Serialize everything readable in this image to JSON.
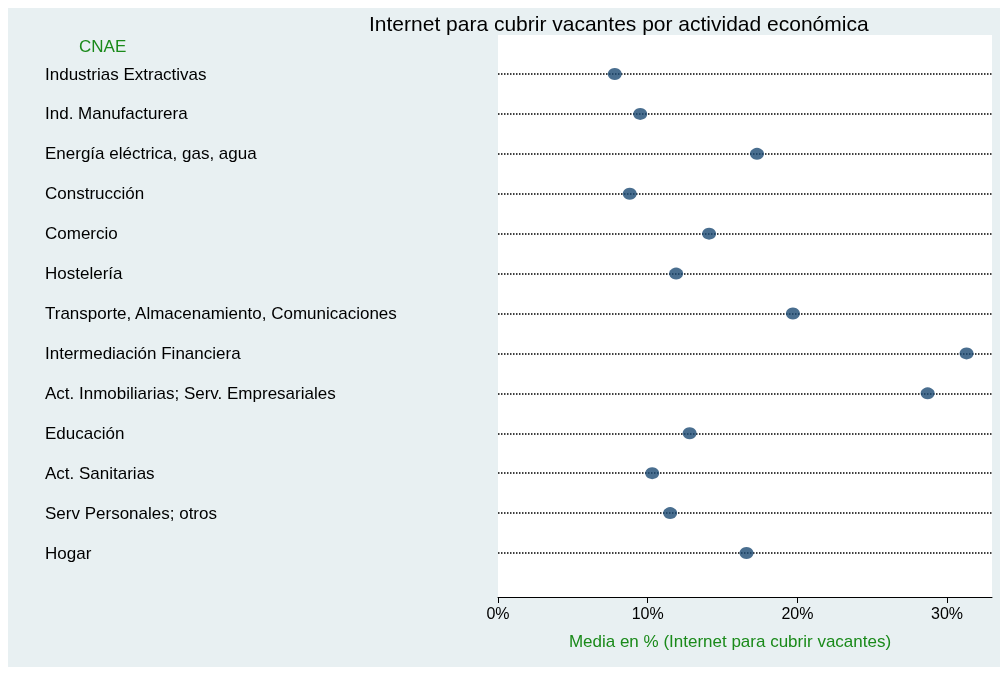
{
  "chart_data": {
    "type": "scatter",
    "title": "Internet para cubrir vacantes por actividad económica",
    "ylabel": "CNAE",
    "xlabel": "Media en % (Internet para cubrir vacantes)",
    "categories": [
      "Industrias Extractivas",
      "Ind. Manufacturera",
      "Energía eléctrica, gas, agua",
      "Construcción",
      "Comercio",
      "Hostelería",
      "Transporte, Almacenamiento, Comunicaciones",
      "Intermediación Financiera",
      "Act. Inmobiliarias; Serv. Empresariales",
      "Educación",
      "Act. Sanitarias",
      "Serv Personales; otros",
      "Hogar"
    ],
    "orientation": "horizontal",
    "values": [
      7.8,
      9.5,
      17.3,
      8.8,
      14.1,
      11.9,
      19.7,
      31.3,
      28.7,
      12.8,
      10.3,
      11.5,
      16.6
    ],
    "color": "#1c4a73",
    "marker": "circle",
    "grid": "y",
    "xlim": [
      0,
      33
    ],
    "xticks": [
      {
        "value": 0,
        "label": "0%"
      },
      {
        "value": 10,
        "label": "10%"
      },
      {
        "value": 20,
        "label": "20%"
      },
      {
        "value": 30,
        "label": "30%"
      }
    ]
  }
}
